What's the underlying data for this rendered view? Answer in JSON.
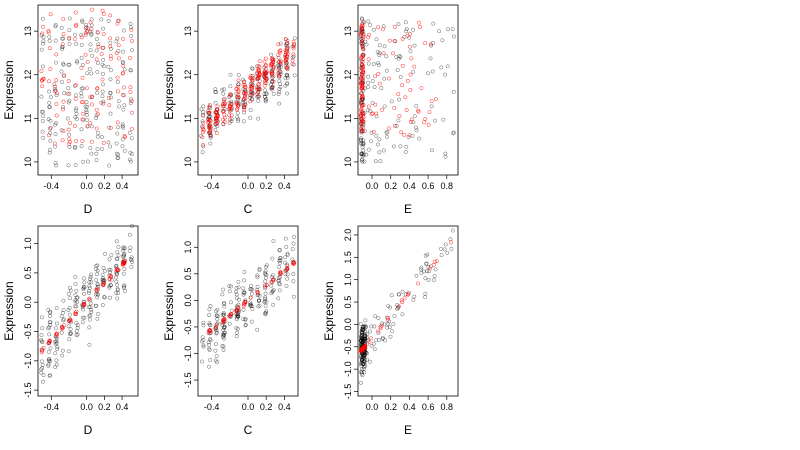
{
  "chart_data": [
    {
      "type": "scatter",
      "xlabel": "D",
      "ylabel": "Expression",
      "xlim": [
        -0.55,
        0.58
      ],
      "ylim": [
        9.7,
        13.6
      ],
      "xticks": [
        -0.4,
        0.0,
        0.2,
        0.4
      ],
      "xtick_labels": [
        "-0.4",
        "0.0",
        "0.2",
        "0.4"
      ],
      "yticks": [
        10,
        11,
        12,
        13
      ],
      "ytick_labels": [
        "10",
        "11",
        "12",
        "13"
      ],
      "grid": false,
      "series": [
        {
          "color": "#000000",
          "x_groups": [
            -0.5,
            -0.42,
            -0.35,
            -0.27,
            -0.2,
            -0.12,
            -0.05,
            0.0,
            0.05,
            0.12,
            0.18,
            0.26,
            0.35,
            0.42,
            0.5
          ],
          "y_min": 9.9,
          "y_max": 13.3
        },
        {
          "color": "#ff0000",
          "x_groups": [
            -0.5,
            -0.42,
            -0.35,
            -0.27,
            -0.2,
            -0.12,
            -0.05,
            0.0,
            0.05,
            0.12,
            0.18,
            0.26,
            0.35,
            0.42,
            0.5
          ],
          "y_min": 10.4,
          "y_max": 13.5
        }
      ]
    },
    {
      "type": "scatter",
      "xlabel": "C",
      "ylabel": "Expression",
      "xlim": [
        -0.55,
        0.55
      ],
      "ylim": [
        9.7,
        13.6
      ],
      "xticks": [
        -0.4,
        0.0,
        0.2,
        0.4
      ],
      "xtick_labels": [
        "-0.4",
        "0.0",
        "0.2",
        "0.4"
      ],
      "yticks": [
        10,
        11,
        12,
        13
      ],
      "ytick_labels": [
        "10",
        "11",
        "12",
        "13"
      ],
      "grid": false,
      "series": [
        {
          "color": "#000000",
          "trend": [
            [
              -0.5,
              10.9
            ],
            [
              0.5,
              12.3
            ]
          ],
          "spread": 0.9
        },
        {
          "color": "#ff0000",
          "trend": [
            [
              -0.5,
              10.7
            ],
            [
              0.5,
              12.6
            ]
          ],
          "spread": 0.6
        }
      ]
    },
    {
      "type": "scatter",
      "xlabel": "E",
      "ylabel": "Expression",
      "xlim": [
        -0.15,
        0.92
      ],
      "ylim": [
        9.7,
        13.6
      ],
      "xticks": [
        0.0,
        0.2,
        0.4,
        0.6,
        0.8
      ],
      "xtick_labels": [
        "0.0",
        "0.2",
        "0.4",
        "0.6",
        "0.8"
      ],
      "yticks": [
        10,
        11,
        12,
        13
      ],
      "ytick_labels": [
        "10",
        "11",
        "12",
        "13"
      ],
      "grid": false,
      "series": [
        {
          "color": "#000000",
          "x_range": [
            -0.12,
            0.88
          ],
          "y_range": [
            10.0,
            13.3
          ]
        },
        {
          "color": "#ff0000",
          "x_range": [
            -0.12,
            0.7
          ],
          "y_range": [
            10.6,
            13.2
          ]
        }
      ]
    },
    {
      "type": "scatter",
      "xlabel": "D",
      "ylabel": "Expression",
      "xlim": [
        -0.55,
        0.58
      ],
      "ylim": [
        -1.6,
        1.3
      ],
      "xticks": [
        -0.4,
        0.0,
        0.2,
        0.4
      ],
      "xtick_labels": [
        "-0.4",
        "0.0",
        "0.2",
        "0.4"
      ],
      "yticks": [
        -1.5,
        -1.0,
        -0.5,
        0.0,
        0.5,
        1.0
      ],
      "ytick_labels": [
        "-1.5",
        "-1.0",
        "-0.5",
        "0.0",
        "0.5",
        "1.0"
      ],
      "grid": false,
      "series": [
        {
          "color": "#000000",
          "trend": [
            [
              -0.5,
              -0.8
            ],
            [
              0.5,
              0.8
            ]
          ],
          "spread": 0.9
        },
        {
          "color": "#ff0000",
          "trend": [
            [
              -0.5,
              -0.8
            ],
            [
              0.5,
              0.8
            ]
          ],
          "spread": 0.05
        }
      ]
    },
    {
      "type": "scatter",
      "xlabel": "C",
      "ylabel": "Expression",
      "xlim": [
        -0.55,
        0.55
      ],
      "ylim": [
        -1.8,
        1.4
      ],
      "xticks": [
        -0.4,
        0.0,
        0.2,
        0.4
      ],
      "xtick_labels": [
        "-0.4",
        "0.0",
        "0.2",
        "0.4"
      ],
      "yticks": [
        -1.5,
        -1.0,
        -0.5,
        0.0,
        0.5,
        1.0
      ],
      "ytick_labels": [
        "-1.5",
        "-1.0",
        "-0.5",
        "0.0",
        "0.5",
        "1.0"
      ],
      "grid": false,
      "series": [
        {
          "color": "#000000",
          "trend": [
            [
              -0.5,
              -0.7
            ],
            [
              0.5,
              0.7
            ]
          ],
          "spread": 0.9
        },
        {
          "color": "#ff0000",
          "trend": [
            [
              -0.5,
              -0.7
            ],
            [
              0.5,
              0.7
            ]
          ],
          "spread": 0.05
        }
      ]
    },
    {
      "type": "scatter",
      "xlabel": "E",
      "ylabel": "Expression",
      "xlim": [
        -0.15,
        0.92
      ],
      "ylim": [
        -1.6,
        2.2
      ],
      "xticks": [
        0.0,
        0.2,
        0.4,
        0.6,
        0.8
      ],
      "xtick_labels": [
        "0.0",
        "0.2",
        "0.4",
        "0.6",
        "0.8"
      ],
      "yticks": [
        -1.5,
        -1.0,
        -0.5,
        0.0,
        0.5,
        1.0,
        1.5,
        2.0
      ],
      "ytick_labels": [
        "-1.5",
        "-1.0",
        "-0.5",
        "0.0",
        "0.5",
        "1.0",
        "1.5",
        "2.0"
      ],
      "grid": false,
      "series": [
        {
          "color": "#000000",
          "trend": [
            [
              -0.12,
              -0.6
            ],
            [
              0.88,
              1.9
            ]
          ],
          "spread": 0.8
        },
        {
          "color": "#ff0000",
          "trend": [
            [
              -0.12,
              -0.6
            ],
            [
              0.88,
              1.9
            ]
          ],
          "spread": 0.05
        }
      ]
    }
  ]
}
